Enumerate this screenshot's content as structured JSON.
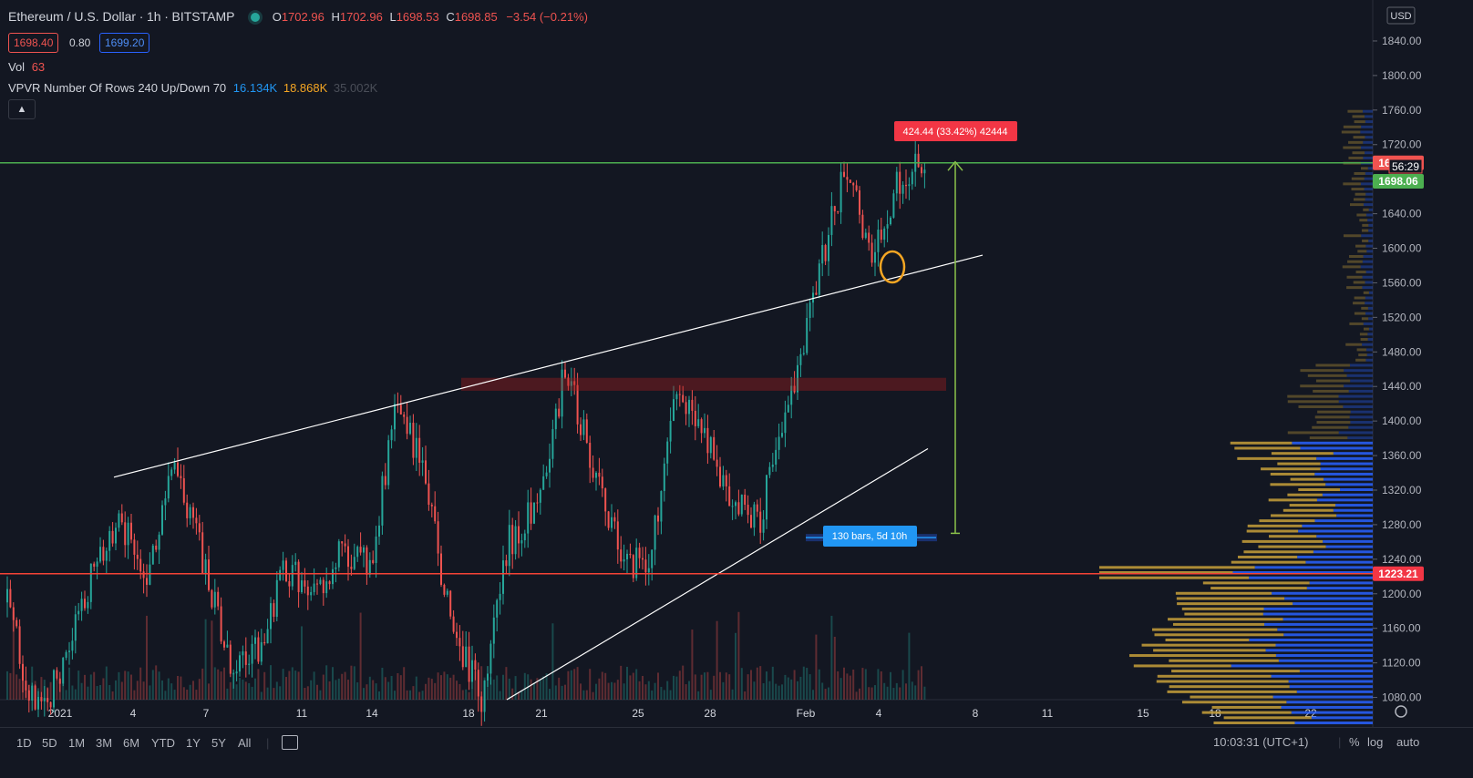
{
  "header": {
    "symbol": "Ethereum / U.S. Dollar",
    "sep": "·",
    "interval": "1h",
    "exchange": "BITSTAMP",
    "o_label": "O",
    "o_value": "1702.96",
    "h_label": "H",
    "h_value": "1702.96",
    "l_label": "L",
    "l_value": "1698.53",
    "c_label": "C",
    "c_value": "1698.85",
    "change": "−3.54 (−0.21%)"
  },
  "quote": {
    "bid": "1698.40",
    "spread": "0.80",
    "ask": "1699.20"
  },
  "volume_indicator": {
    "label": "Vol",
    "value": "63"
  },
  "vpvr_indicator": {
    "label": "VPVR Number Of Rows 240 Up/Down 70",
    "up": "16.134K",
    "down": "18.868K",
    "total": "35.002K"
  },
  "collapse_icon": "chevron-up-icon",
  "currency": "USD",
  "price_axis": {
    "ticks": [
      "1840.00",
      "1800.00",
      "1760.00",
      "1720.00",
      "1680.00",
      "1640.00",
      "1600.00",
      "1560.00",
      "1520.00",
      "1480.00",
      "1440.00",
      "1400.00",
      "1360.00",
      "1320.00",
      "1280.00",
      "1240.00",
      "1200.00",
      "1160.00",
      "1120.00",
      "1080.00"
    ],
    "last_price_tag": "1698.85",
    "countdown_tag": "56:29",
    "ask_tag": "1698.06",
    "support_tag": "1223.21"
  },
  "time_axis": {
    "ticks": [
      "2021",
      "4",
      "7",
      "11",
      "14",
      "18",
      "21",
      "25",
      "28",
      "Feb",
      "4",
      "8",
      "11",
      "15",
      "18",
      "22"
    ]
  },
  "annotations": {
    "measure_label": "424.44 (33.42%) 42444",
    "bars_label": "130 bars, 5d 10h"
  },
  "toolbar": {
    "timeframes": [
      "1D",
      "5D",
      "1M",
      "3M",
      "6M",
      "YTD",
      "1Y",
      "5Y",
      "All"
    ],
    "clock": "10:03:31 (UTC+1)",
    "percent": "%",
    "log": "log",
    "auto": "auto"
  },
  "colors": {
    "background": "#131722",
    "up": "#26a69a",
    "down": "#ef5350",
    "resistance_line": "#4caf50",
    "support_line": "#f44336",
    "vpvr_up": "#2962ff",
    "vpvr_down": "#c8a03a"
  },
  "chart_data": {
    "type": "candlestick",
    "ylim": [
      1050,
      1860
    ],
    "horizontal_lines": [
      1698.85,
      1223.21
    ],
    "price_path": [
      {
        "x": "2021",
        "y": 1190
      },
      {
        "x": "4",
        "y": 1060
      },
      {
        "x": "5",
        "y": 1110
      },
      {
        "x": "7",
        "y": 1220
      },
      {
        "x": "8",
        "y": 1280
      },
      {
        "x": "9",
        "y": 1230
      },
      {
        "x": "10",
        "y": 1345
      },
      {
        "x": "11",
        "y": 1240
      },
      {
        "x": "12",
        "y": 1110
      },
      {
        "x": "14",
        "y": 1140
      },
      {
        "x": "15",
        "y": 1230
      },
      {
        "x": "16",
        "y": 1195
      },
      {
        "x": "17",
        "y": 1250
      },
      {
        "x": "18",
        "y": 1230
      },
      {
        "x": "19",
        "y": 1430
      },
      {
        "x": "20",
        "y": 1330
      },
      {
        "x": "21",
        "y": 1150
      },
      {
        "x": "22",
        "y": 1080
      },
      {
        "x": "23",
        "y": 1260
      },
      {
        "x": "24",
        "y": 1300
      },
      {
        "x": "25",
        "y": 1460
      },
      {
        "x": "26",
        "y": 1350
      },
      {
        "x": "27",
        "y": 1240
      },
      {
        "x": "28",
        "y": 1230
      },
      {
        "x": "29",
        "y": 1430
      },
      {
        "x": "30",
        "y": 1380
      },
      {
        "x": "31",
        "y": 1300
      },
      {
        "x": "Feb",
        "y": 1290
      },
      {
        "x": "2",
        "y": 1420
      },
      {
        "x": "3",
        "y": 1560
      },
      {
        "x": "4",
        "y": 1690
      },
      {
        "x": "4.5",
        "y": 1595
      },
      {
        "x": "5",
        "y": 1680
      },
      {
        "x": "5.5",
        "y": 1698.85
      }
    ]
  }
}
